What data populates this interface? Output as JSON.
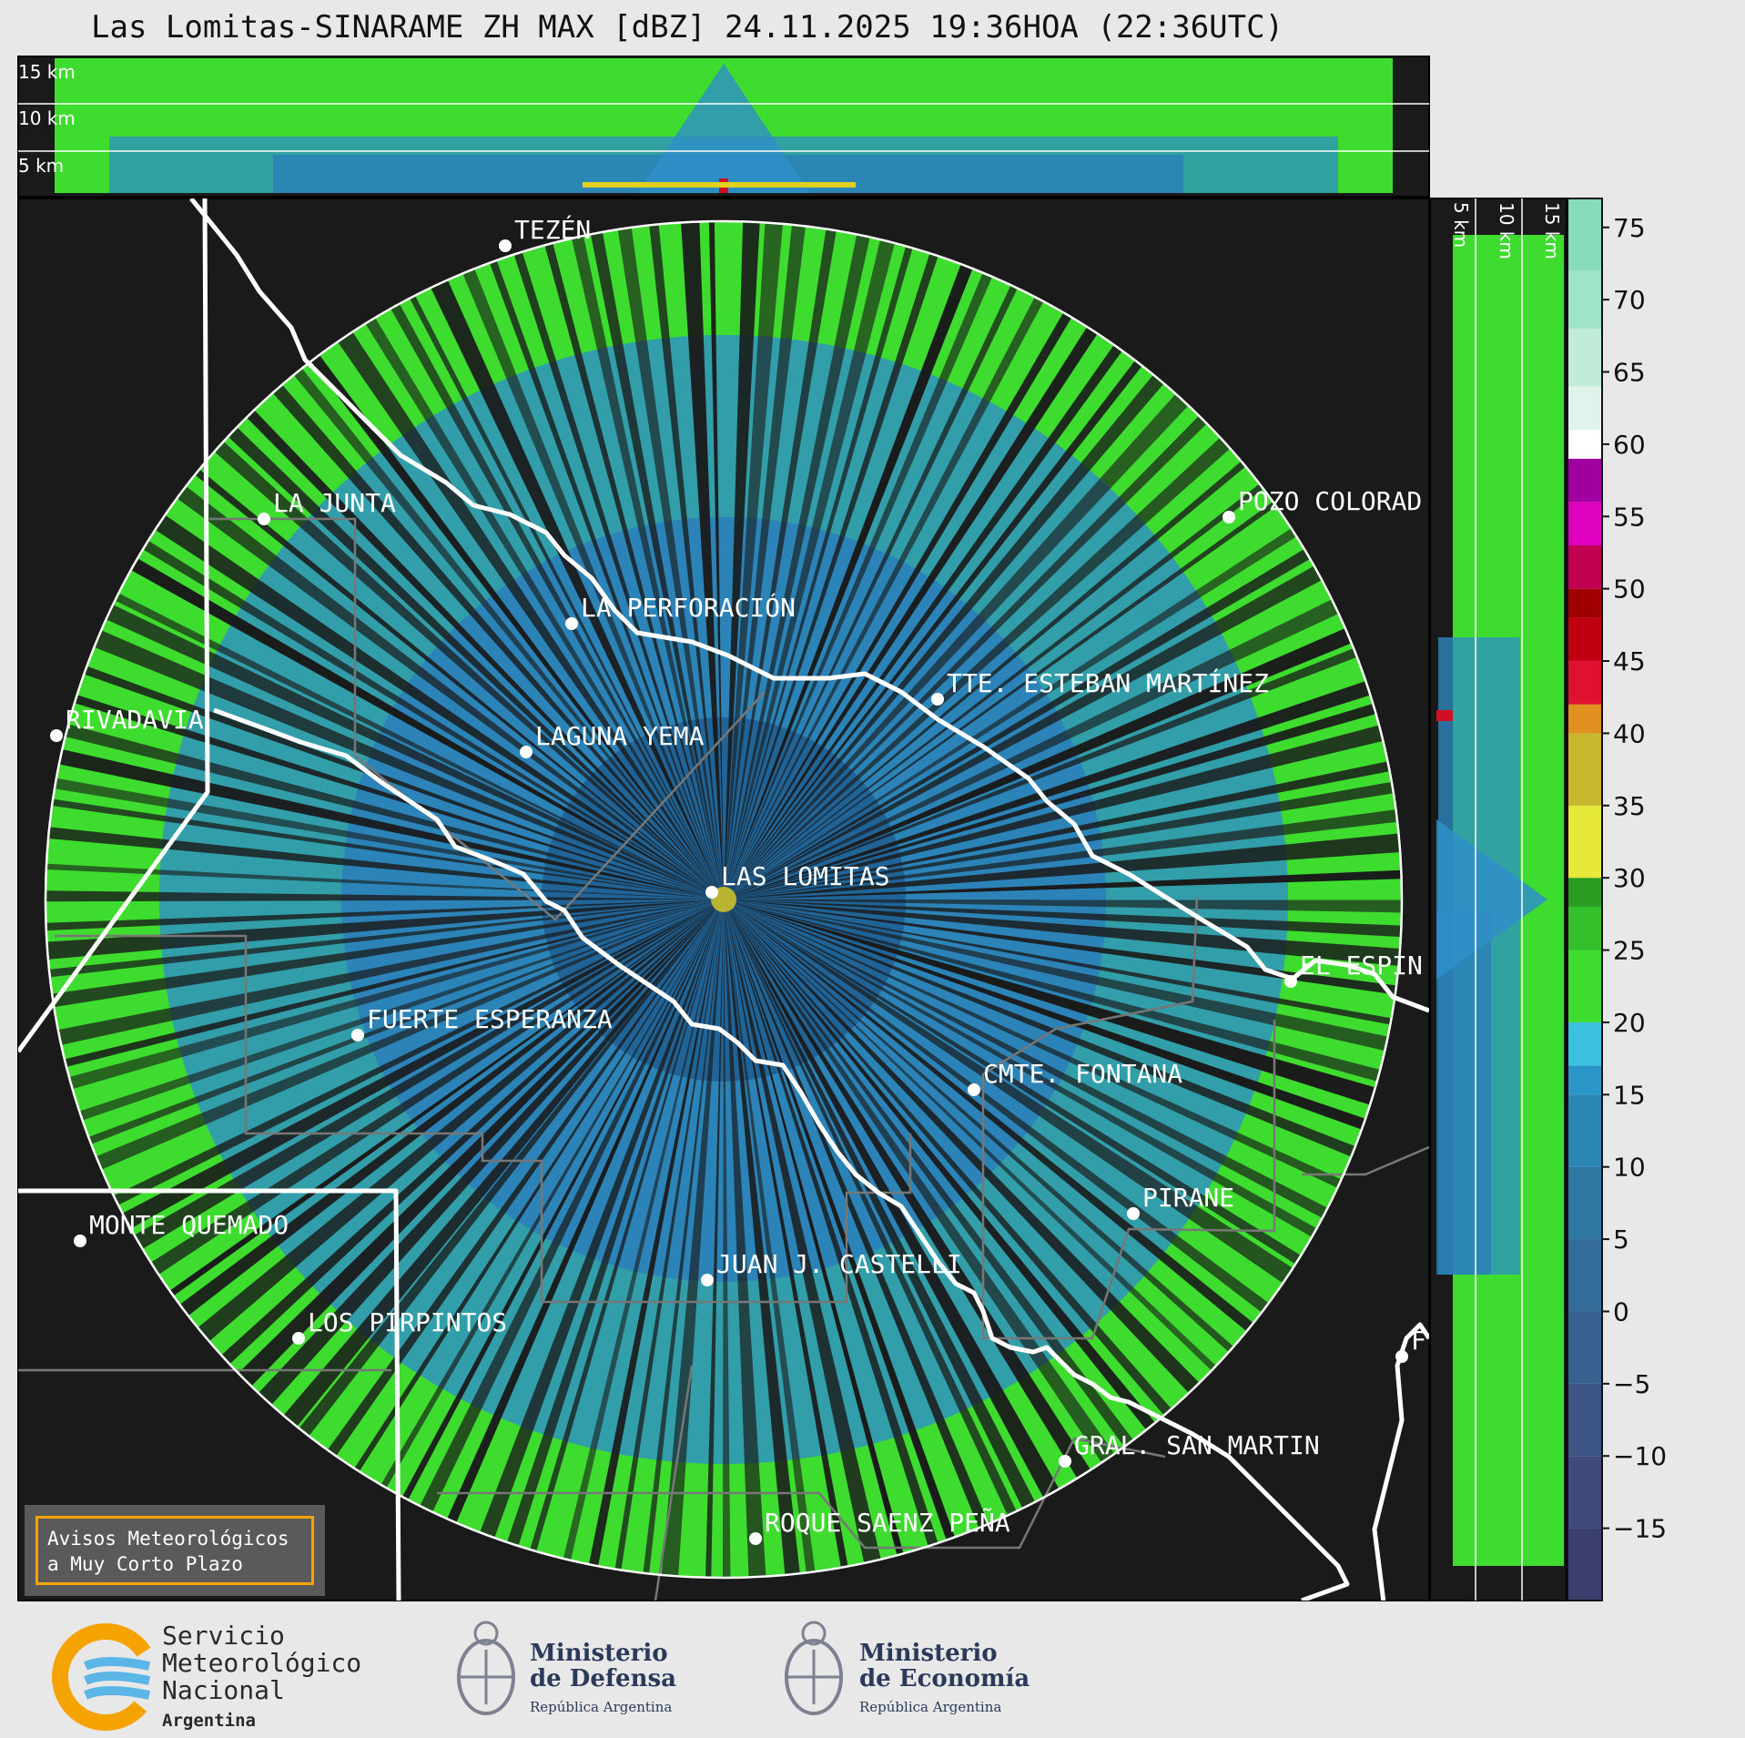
{
  "title": "Las Lomitas-SINARAME ZH MAX [dBZ] 24.11.2025 19:36HOA (22:36UTC)",
  "top_panel": {
    "height_labels": [
      "15 km",
      "10 km",
      "5 km"
    ]
  },
  "side_panel": {
    "height_labels": [
      "5 km",
      "10 km",
      "15 km"
    ]
  },
  "colorbar": {
    "ticks": [
      "75",
      "70",
      "65",
      "60",
      "55",
      "50",
      "45",
      "40",
      "35",
      "30",
      "25",
      "20",
      "15",
      "10",
      "5",
      "0",
      "−5",
      "−10",
      "−15"
    ]
  },
  "places": [
    {
      "name": "TEZÉN"
    },
    {
      "name": "LA JUNTA"
    },
    {
      "name": "POZO COLORAD"
    },
    {
      "name": "LA PERFORACIÓN"
    },
    {
      "name": "TTE. ESTEBAN MARTÍNEZ"
    },
    {
      "name": "RIVADAVIA"
    },
    {
      "name": "LAGUNA YEMA"
    },
    {
      "name": "LAS LOMITAS"
    },
    {
      "name": "EL ESPIN"
    },
    {
      "name": "FUERTE ESPERANZA"
    },
    {
      "name": "CMTE. FONTANA"
    },
    {
      "name": "PIRANE"
    },
    {
      "name": "MONTE QUEMADO"
    },
    {
      "name": "JUAN J. CASTELLI"
    },
    {
      "name": "LOS PIRPINTOS"
    },
    {
      "name": "GRAL. SAN MARTIN"
    },
    {
      "name": "ROQUE SAENZ PEÑA"
    },
    {
      "name": "F"
    }
  ],
  "warning": {
    "line1": "Avisos Meteorológicos",
    "line2": "a Muy Corto Plazo"
  },
  "logos": {
    "smn": {
      "line1": "Servicio",
      "line2": "Meteorológico",
      "line3": "Nacional",
      "line4": "Argentina"
    },
    "defensa": {
      "line1": "Ministerio",
      "line2": "de Defensa",
      "line3": "República Argentina"
    },
    "economia": {
      "line1": "Ministerio",
      "line2": "de Economía",
      "line3": "República Argentina"
    }
  },
  "colors": {
    "map_bg": "#1a1a1a",
    "weak_echo": "#2f8fc8",
    "moderate_echo": "#3ddc2e",
    "range_ring": "#ffffff",
    "border": "#ffffff",
    "accent_warning": "#f5a300"
  }
}
